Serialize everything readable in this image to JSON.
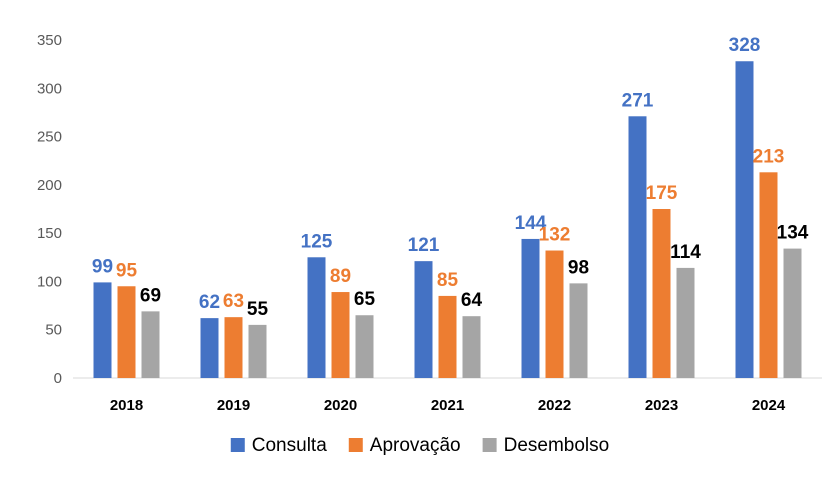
{
  "chart_data": {
    "type": "bar",
    "title": "",
    "xlabel": "",
    "ylabel": "",
    "categories": [
      "2018",
      "2019",
      "2020",
      "2021",
      "2022",
      "2023",
      "2024"
    ],
    "series": [
      {
        "name": "Consulta",
        "color": "#4472C4",
        "label_color": "#4472C4",
        "values": [
          99,
          62,
          125,
          121,
          144,
          271,
          328
        ]
      },
      {
        "name": "Aprovação",
        "color": "#ED7D31",
        "label_color": "#ED7D31",
        "values": [
          95,
          63,
          89,
          85,
          132,
          175,
          213
        ]
      },
      {
        "name": "Desembolso",
        "color": "#A5A5A5",
        "label_color": "#000000",
        "values": [
          69,
          55,
          65,
          64,
          98,
          114,
          134
        ]
      }
    ],
    "ylim": [
      0,
      350
    ],
    "yticks": [
      0,
      50,
      100,
      150,
      200,
      250,
      300,
      350
    ],
    "grid": false,
    "legend": "bottom"
  }
}
